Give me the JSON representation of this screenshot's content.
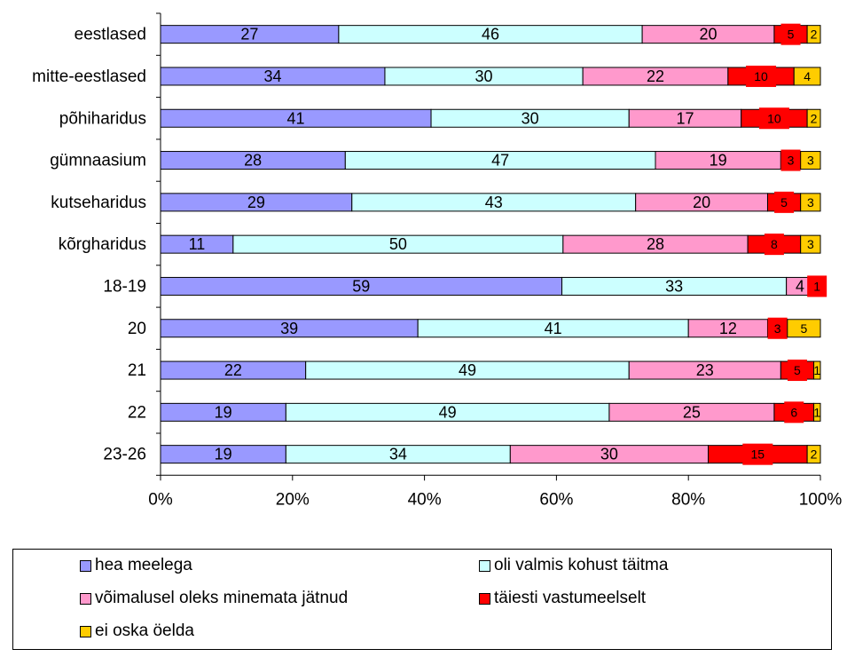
{
  "chart_data": {
    "type": "bar",
    "orientation": "horizontal",
    "stacked": "percent",
    "categories": [
      "eestlased",
      "mitte-eestlased",
      "põhiharidus",
      "gümnaasium",
      "kutseharidus",
      "kõrgharidus",
      "18-19",
      "20",
      "21",
      "22",
      "23-26"
    ],
    "series": [
      {
        "name": "hea meelega",
        "color": "#9999ff",
        "values": [
          27,
          34,
          41,
          28,
          29,
          11,
          59,
          39,
          22,
          19,
          19
        ]
      },
      {
        "name": "oli valmis kohust täitma",
        "color": "#ccffff",
        "values": [
          46,
          30,
          30,
          47,
          43,
          50,
          33,
          41,
          49,
          49,
          34
        ]
      },
      {
        "name": "võimalusel oleks minemata jätnud",
        "color": "#ff99cc",
        "values": [
          20,
          22,
          17,
          19,
          20,
          28,
          4,
          12,
          23,
          25,
          30
        ]
      },
      {
        "name": "täiesti vastumeelselt",
        "color": "#ff0000",
        "values": [
          5,
          10,
          10,
          3,
          5,
          8,
          1,
          3,
          5,
          6,
          15
        ]
      },
      {
        "name": "ei oska öelda",
        "color": "#ffcc00",
        "values": [
          2,
          4,
          2,
          3,
          3,
          3,
          null,
          5,
          1,
          1,
          2
        ]
      }
    ],
    "xlim": [
      0,
      100
    ],
    "xticks": [
      "0%",
      "20%",
      "40%",
      "60%",
      "80%",
      "100%"
    ],
    "legend_position": "bottom",
    "grid": false
  }
}
